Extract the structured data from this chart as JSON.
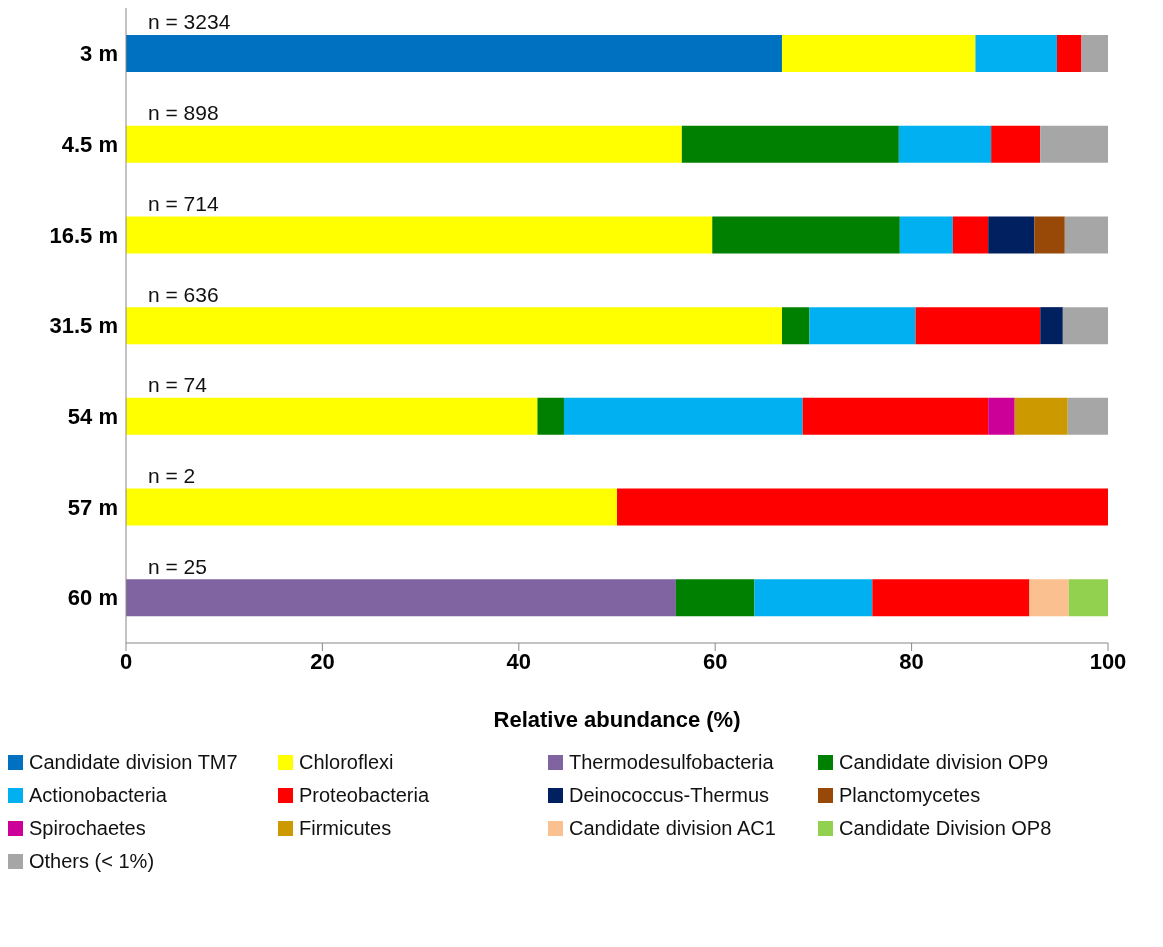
{
  "chart_data": {
    "type": "bar",
    "orientation": "horizontal",
    "stacked": true,
    "xlabel": "Relative abundance (%)",
    "categories": [
      "3 m",
      "4.5 m",
      "16.5 m",
      "31.5 m",
      "54 m",
      "57 m",
      "60 m"
    ],
    "xlim": [
      0,
      100
    ],
    "xticks": [
      0,
      20,
      40,
      60,
      80,
      100
    ],
    "grid": false,
    "legend": "bottom",
    "series": [
      {
        "name": "Candidate division TM7",
        "color": "#0070c0",
        "values": [
          66.8,
          null,
          null,
          null,
          null,
          null,
          null
        ]
      },
      {
        "name": "Chloroflexi",
        "color": "#ffff00",
        "values": [
          19.7,
          56.6,
          59.7,
          66.8,
          41.9,
          50,
          null
        ]
      },
      {
        "name": "Thermodesulfobacteria",
        "color": "#8064a2",
        "values": [
          null,
          null,
          null,
          null,
          null,
          null,
          56
        ]
      },
      {
        "name": "Candidate division OP9",
        "color": "#008000",
        "values": [
          null,
          22.1,
          19.1,
          2.8,
          2.7,
          null,
          8
        ]
      },
      {
        "name": "Actionobacteria",
        "color": "#00b0f0",
        "values": [
          8.3,
          9.4,
          5.4,
          10.8,
          24.3,
          null,
          12
        ]
      },
      {
        "name": "Proteobacteria",
        "color": "#ff0000",
        "values": [
          2.5,
          5.0,
          3.6,
          12.7,
          18.9,
          50,
          16
        ]
      },
      {
        "name": "Deinococcus-Thermus",
        "color": "#002060",
        "values": [
          null,
          null,
          4.7,
          2.3,
          null,
          null,
          null
        ]
      },
      {
        "name": "Planctomycetes",
        "color": "#984807",
        "values": [
          null,
          null,
          3.1,
          null,
          null,
          null,
          null
        ]
      },
      {
        "name": "Spirochaetes",
        "color": "#cc0099",
        "values": [
          null,
          null,
          null,
          null,
          2.7,
          null,
          null
        ]
      },
      {
        "name": "Firmicutes",
        "color": "#cc9900",
        "values": [
          null,
          null,
          null,
          null,
          5.4,
          null,
          null
        ]
      },
      {
        "name": "Candidate division AC1",
        "color": "#fac090",
        "values": [
          null,
          null,
          null,
          null,
          null,
          null,
          4
        ]
      },
      {
        "name": "Candidate Division OP8",
        "color": "#92d050",
        "values": [
          null,
          null,
          null,
          null,
          null,
          null,
          4
        ]
      },
      {
        "name": "Others (< 1%)",
        "color": "#a6a6a6",
        "values": [
          2.7,
          6.9,
          4.4,
          4.6,
          4.1,
          null,
          null
        ]
      }
    ],
    "annotations": [
      "n = 3234",
      "n = 898",
      "n = 714",
      "n = 636",
      "n = 74",
      "n = 2",
      "n = 25"
    ]
  }
}
